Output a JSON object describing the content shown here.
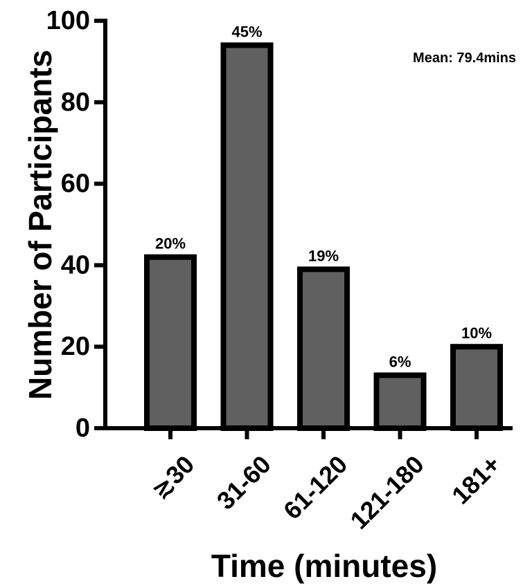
{
  "chart_data": {
    "type": "bar",
    "title": "",
    "xlabel": "Time (minutes)",
    "ylabel": "Number of Participants",
    "categories": [
      "≳30",
      "31-60",
      "61-120",
      "121-180",
      "181+"
    ],
    "values": [
      42,
      94,
      39,
      13,
      20
    ],
    "data_labels": [
      "20%",
      "45%",
      "19%",
      "6%",
      "10%"
    ],
    "yticks": [
      0,
      20,
      40,
      60,
      80,
      100
    ],
    "ylim": [
      0,
      100
    ],
    "annotation": "Mean: 79.4mins",
    "bar_color": "#606060",
    "edge_color": "#000000",
    "grid": false,
    "legend": "none"
  }
}
